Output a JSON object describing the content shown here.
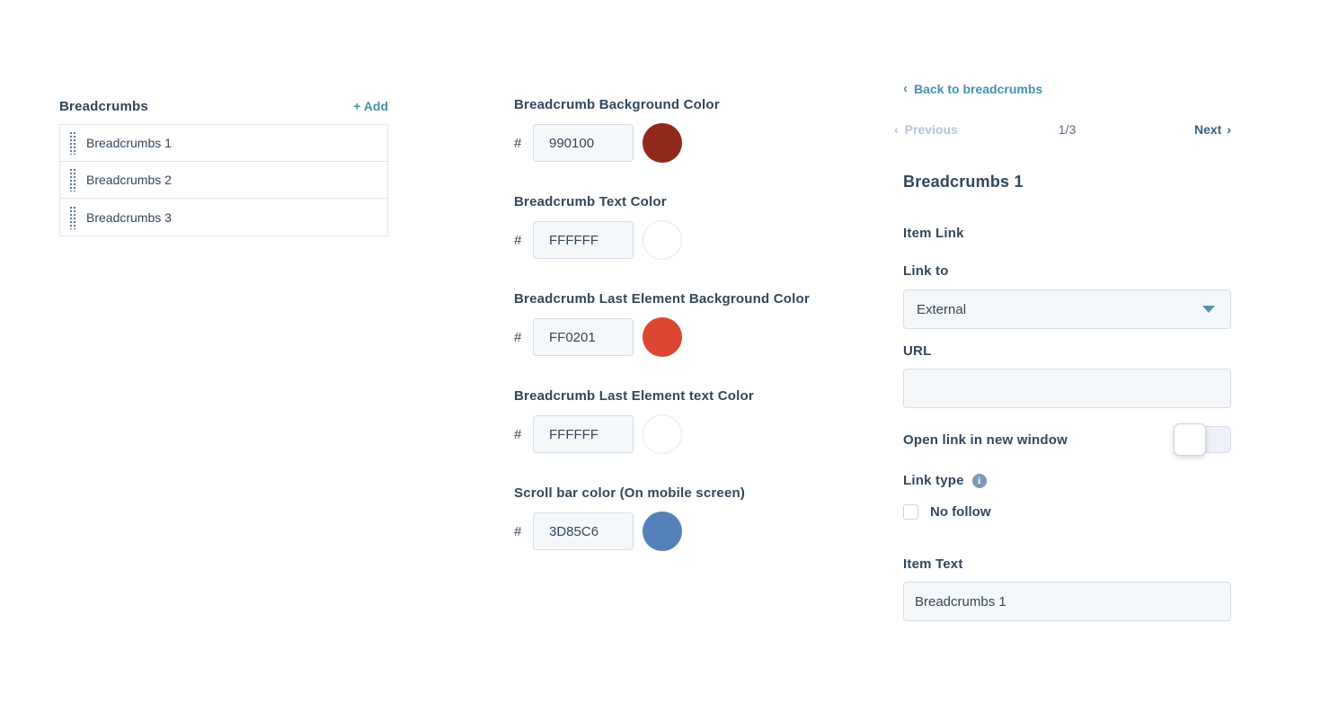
{
  "colors": {
    "text_navy": "#33475b",
    "link_teal": "#4a90ac",
    "input_bg": "#f5f8fa",
    "input_border": "#d6dee8",
    "disabled_gray": "#b8c6d5"
  },
  "icons": {
    "chevron_left": "‹",
    "chevron_right": "›",
    "info": "i",
    "drag_handle": "dot-grid",
    "caret_down": "triangle-down"
  },
  "left_panel": {
    "title": "Breadcrumbs",
    "add_label": "+ Add",
    "items": [
      {
        "label": "Breadcrumbs 1"
      },
      {
        "label": "Breadcrumbs 2"
      },
      {
        "label": "Breadcrumbs 3"
      }
    ]
  },
  "color_settings": {
    "hash_symbol": "#",
    "fields": [
      {
        "label": "Breadcrumb Background Color",
        "value": "990100",
        "swatch_hex": "#8f2a1c",
        "swatch_style": "background:#8f2a1c"
      },
      {
        "label": "Breadcrumb Text Color",
        "value": "FFFFFF",
        "swatch_hex": "#ffffff",
        "swatch_style": "background:#ffffff;border:1px solid #e3e9f0"
      },
      {
        "label": "Breadcrumb Last Element Background Color",
        "value": "FF0201",
        "swatch_hex": "#dd4732",
        "swatch_style": "background:#dd4732"
      },
      {
        "label": "Breadcrumb Last Element text Color",
        "value": "FFFFFF",
        "swatch_hex": "#ffffff",
        "swatch_style": "background:#ffffff;border:1px solid #e3e9f0"
      },
      {
        "label": "Scroll bar color (On mobile screen)",
        "value": "3D85C6",
        "swatch_hex": "#5580b9",
        "swatch_style": "background:#5580b9"
      }
    ]
  },
  "detail_panel": {
    "back_chevron": "‹",
    "back_label": "Back to breadcrumbs",
    "pager": {
      "prev_chevron": "‹",
      "prev_label": "Previous",
      "position": "1/3",
      "next_label": "Next",
      "next_chevron": "›"
    },
    "title": "Breadcrumbs 1",
    "item_link_label": "Item Link",
    "link_to_label": "Link to",
    "link_to_value": "External",
    "url_label": "URL",
    "url_value": "",
    "open_new_window_label": "Open link in new window",
    "open_new_window_state": "off",
    "link_type_label": "Link type",
    "info_glyph": "i",
    "no_follow_label": "No follow",
    "no_follow_checked": false,
    "item_text_label": "Item Text",
    "item_text_value": "Breadcrumbs 1"
  }
}
